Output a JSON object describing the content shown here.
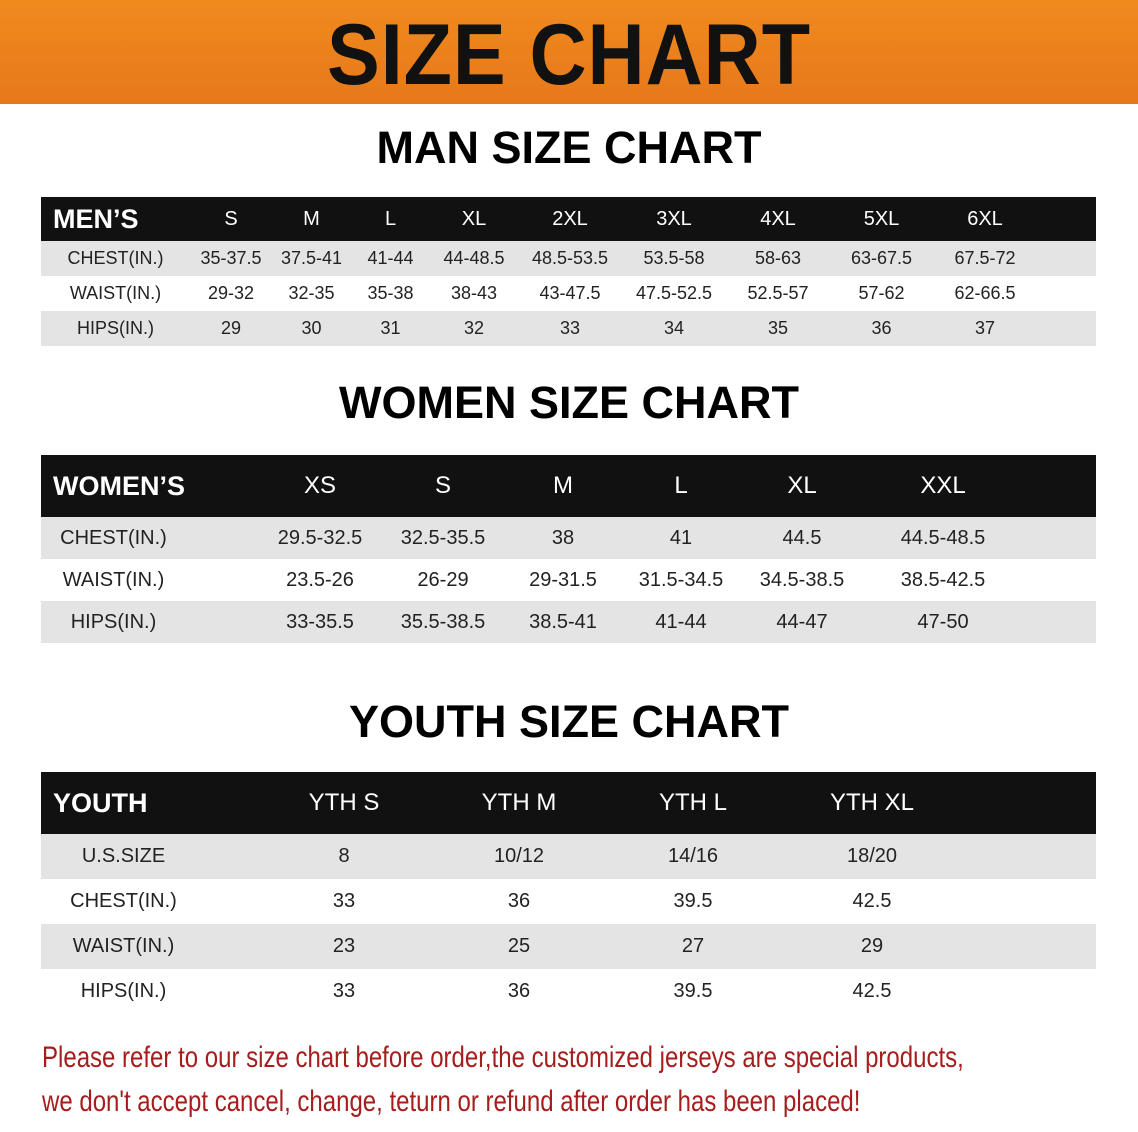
{
  "banner": {
    "title": "SIZE CHART",
    "color": "#ec801c"
  },
  "men": {
    "title": "MAN SIZE CHART",
    "header": [
      "MEN’S",
      "S",
      "M",
      "L",
      "XL",
      "2XL",
      "3XL",
      "4XL",
      "5XL",
      "6XL"
    ],
    "rows": [
      [
        "CHEST(IN.)",
        "35-37.5",
        "37.5-41",
        "41-44",
        "44-48.5",
        "48.5-53.5",
        "53.5-58",
        "58-63",
        "63-67.5",
        "67.5-72"
      ],
      [
        "WAIST(IN.)",
        "29-32",
        "32-35",
        "35-38",
        "38-43",
        "43-47.5",
        "47.5-52.5",
        "52.5-57",
        "57-62",
        "62-66.5"
      ],
      [
        "HIPS(IN.)",
        "29",
        "30",
        "31",
        "32",
        "33",
        "34",
        "35",
        "36",
        "37"
      ]
    ]
  },
  "women": {
    "title": "WOMEN SIZE CHART",
    "header": [
      "WOMEN’S",
      "XS",
      "S",
      "M",
      "L",
      "XL",
      "XXL"
    ],
    "rows": [
      [
        "CHEST(IN.)",
        "29.5-32.5",
        "32.5-35.5",
        "38",
        "41",
        "44.5",
        "44.5-48.5"
      ],
      [
        "WAIST(IN.)",
        "23.5-26",
        "26-29",
        "29-31.5",
        "31.5-34.5",
        "34.5-38.5",
        "38.5-42.5"
      ],
      [
        "HIPS(IN.)",
        "33-35.5",
        "35.5-38.5",
        "38.5-41",
        "41-44",
        "44-47",
        "47-50"
      ]
    ]
  },
  "youth": {
    "title": "YOUTH SIZE CHART",
    "header": [
      "YOUTH",
      "YTH S",
      "YTH M",
      "YTH L",
      "YTH XL"
    ],
    "rows": [
      [
        "U.S.SIZE",
        "8",
        "10/12",
        "14/16",
        "18/20"
      ],
      [
        "CHEST(IN.)",
        "33",
        "36",
        "39.5",
        "42.5"
      ],
      [
        "WAIST(IN.)",
        "23",
        "25",
        "27",
        "29"
      ],
      [
        "HIPS(IN.)",
        "33",
        "36",
        "39.5",
        "42.5"
      ]
    ]
  },
  "note": {
    "line1": "Please refer to our size chart before order,the customized jerseys are special products,",
    "line2": "we don't accept cancel, change, teturn or refund after order has been placed!",
    "color": "#a51d1d"
  }
}
